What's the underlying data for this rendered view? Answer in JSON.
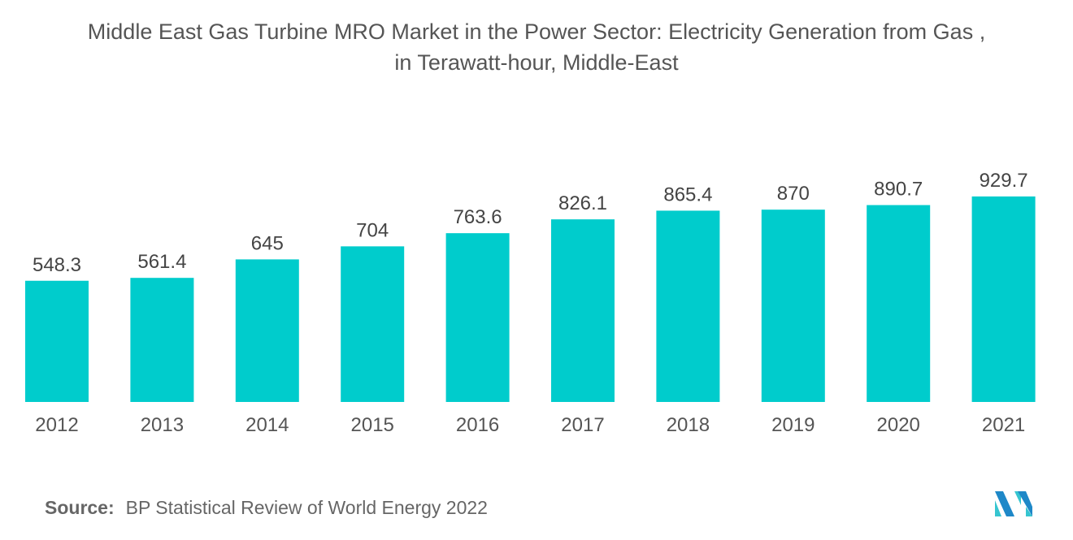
{
  "chart_data": {
    "type": "bar",
    "title_line1": "Middle East Gas Turbine MRO Market in the Power Sector: Electricity Generation from Gas ,",
    "title_line2": "in Terawatt-hour, Middle-East",
    "categories": [
      "2012",
      "2013",
      "2014",
      "2015",
      "2016",
      "2017",
      "2018",
      "2019",
      "2020",
      "2021"
    ],
    "values": [
      548.3,
      561.4,
      645,
      704,
      763.6,
      826.1,
      865.4,
      870,
      890.7,
      929.7
    ],
    "value_labels": [
      "548.3",
      "561.4",
      "645",
      "704",
      "763.6",
      "826.1",
      "865.4",
      "870",
      "890.7",
      "929.7"
    ],
    "xlabel": "",
    "ylabel": "",
    "ylim": [
      0,
      1000
    ],
    "grid": false,
    "bar_color": "#00CCCC"
  },
  "source": {
    "label": "Source:",
    "text": "BP Statistical Review of World Energy 2022"
  },
  "logo": {
    "colors": [
      "#1E88C8",
      "#36C5D0"
    ]
  }
}
